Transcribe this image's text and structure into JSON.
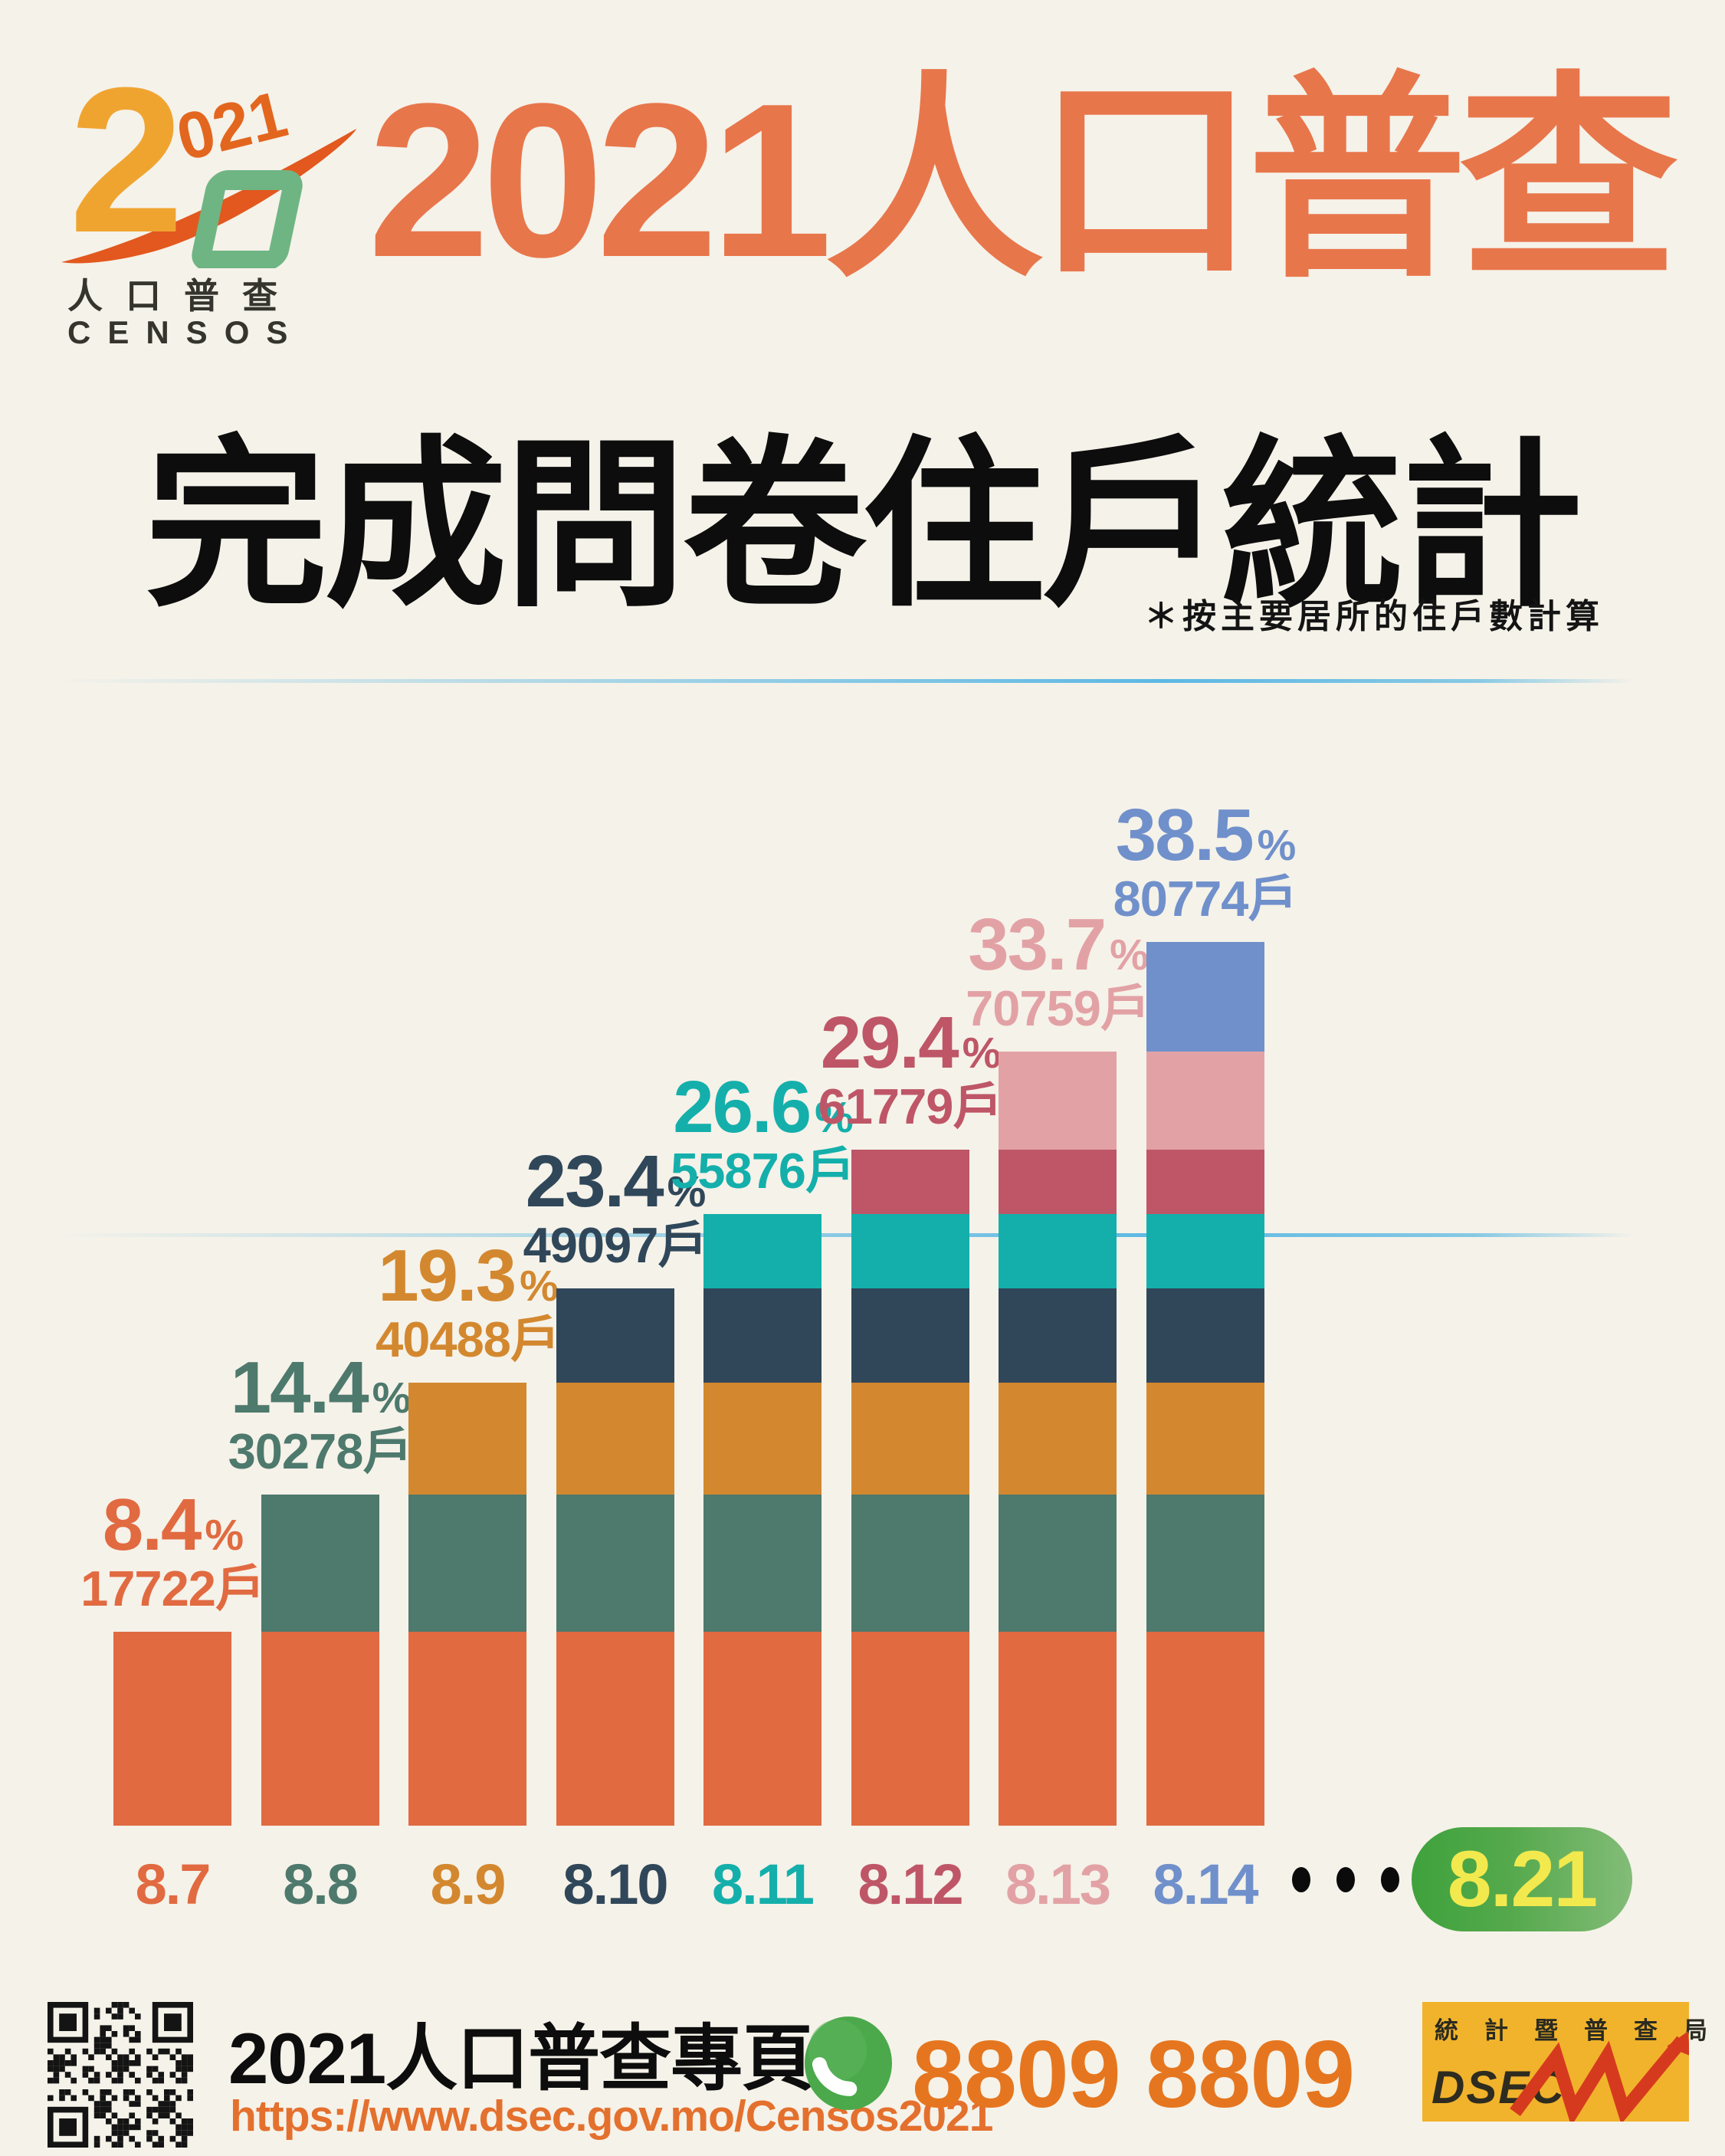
{
  "census_logo": {
    "big_digit": "2",
    "small_digits": "021",
    "cjk": "人口普查",
    "latin": "CENSOS"
  },
  "header": {
    "title": "2021人口普查",
    "subtitle": "完成問卷住戶統計",
    "note": "＊按主要居所的住戶數計算"
  },
  "chart_data": {
    "type": "bar",
    "stacked": true,
    "title": "完成問卷住戶統計 (2021人口普查)",
    "unit": "戶",
    "categories": [
      "8.7",
      "8.8",
      "8.9",
      "8.10",
      "8.11",
      "8.12",
      "8.13",
      "8.14"
    ],
    "cumulative_percent": [
      8.4,
      14.4,
      19.3,
      23.4,
      26.6,
      29.4,
      33.7,
      38.5
    ],
    "cumulative_households": [
      17722,
      30278,
      40488,
      49097,
      55876,
      61779,
      70759,
      80774
    ],
    "series_colors": [
      "#E16A41",
      "#4E796D",
      "#D3882F",
      "#30475A",
      "#14AFAB",
      "#BE5667",
      "#E2A2A5",
      "#7090CB"
    ],
    "percent_sign": "%",
    "ellipsis_dots": 3,
    "highlight_date": "8.21",
    "highlight_text_color": "#F2E94E",
    "highlight_pill_gradient": [
      "#3EA23C",
      "#83BC78"
    ],
    "gridline_color": "#54B5E4",
    "legend_position": "none",
    "grid": "two decorative horizontal lines"
  },
  "footer": {
    "site_title": "2021人口普查專頁",
    "site_url": "https://www.dsec.gov.mo/Censos2021",
    "phone": "8809 8809",
    "dsec_cjk": "統計暨普查局",
    "dsec_latin": "DSEC"
  },
  "colors": {
    "background": "#F5F2E9",
    "title_orange": "#E8764B",
    "url_orange": "#E4702E",
    "phone_orange": "#E5761F",
    "pill_green": "#55A94C",
    "dsec_yellow": "#F1B32B",
    "dsec_red": "#D63A1E"
  }
}
